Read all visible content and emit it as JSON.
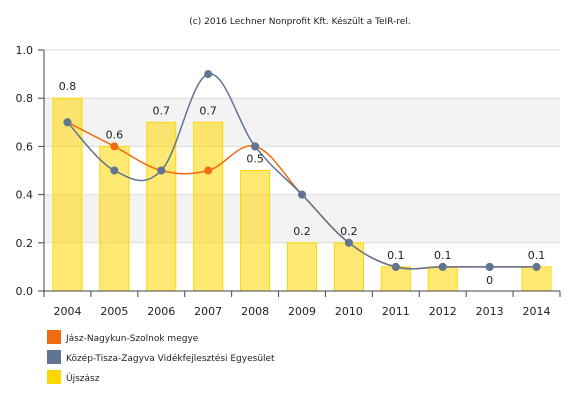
{
  "chart_data": {
    "type": "bar+line",
    "credit": "(c) 2016 Lechner Nonprofit Kft. Készült a TeIR-rel.",
    "categories": [
      "2004",
      "2005",
      "2006",
      "2007",
      "2008",
      "2009",
      "2010",
      "2011",
      "2012",
      "2013",
      "2014"
    ],
    "ylim": [
      0,
      1.0
    ],
    "yticks": [
      "0.0",
      "0.2",
      "0.4",
      "0.6",
      "0.8",
      "1.0"
    ],
    "grid": true,
    "legend_position": "bottom-left",
    "series": [
      {
        "name": "Jász-Nagykun-Szolnok megye",
        "type": "line",
        "color": "#f26b12",
        "values": [
          0.7,
          0.6,
          0.5,
          0.5,
          0.6,
          0.4,
          0.2,
          0.1,
          0.1,
          0.1,
          0.1
        ]
      },
      {
        "name": "Közép-Tisza-Zagyva Vidékfejlesztési Egyesület",
        "type": "line",
        "color": "#5f7593",
        "values": [
          0.7,
          0.5,
          0.5,
          0.9,
          0.6,
          0.4,
          0.2,
          0.1,
          0.1,
          0.1,
          0.1
        ]
      },
      {
        "name": "Újszász",
        "type": "bar",
        "color": "#ffd700",
        "values": [
          0.8,
          0.6,
          0.7,
          0.7,
          0.5,
          0.2,
          0.2,
          0.1,
          0.1,
          0,
          0.1
        ],
        "labels": [
          "0.8",
          "0.6",
          "0.7",
          "0.7",
          "0.5",
          "0.2",
          "0.2",
          "0.1",
          "0.1",
          "0",
          "0.1"
        ]
      }
    ]
  }
}
